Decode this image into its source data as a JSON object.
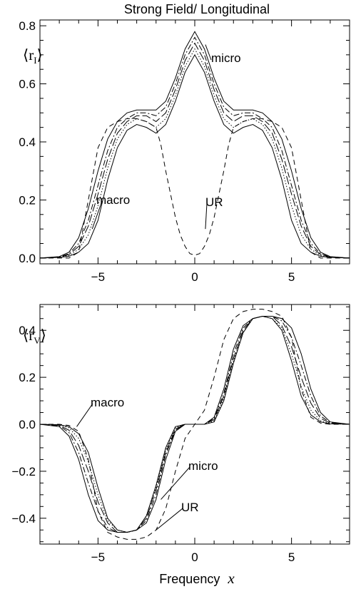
{
  "chart_data": {
    "type": "line",
    "title": "Strong Field/ Longitudinal",
    "xlabel": "Frequency",
    "xlabel_var": "x",
    "panels": [
      {
        "label": "⟨r",
        "label_sub": "I",
        "label_close": "⟩",
        "xlim": [
          -8,
          8
        ],
        "ylim": [
          -0.02,
          0.82
        ],
        "xticks": [
          -5,
          0,
          5
        ],
        "xtick_labels": [
          "−5",
          "0",
          "5"
        ],
        "yticks": [
          0.0,
          0.2,
          0.4,
          0.6,
          0.8
        ],
        "ytick_labels": [
          "0.0",
          "0.2",
          "0.4",
          "0.6",
          "0.8"
        ],
        "series": [
          {
            "style": "solid",
            "x": [
              -8,
              -7,
              -6.5,
              -6,
              -5.5,
              -5,
              -4.5,
              -4,
              -3.5,
              -3,
              -2.5,
              -2,
              -1.5,
              -1,
              -0.5,
              0,
              0.5,
              1,
              1.5,
              2,
              2.5,
              3,
              3.5,
              4,
              4.5,
              5,
              5.5,
              6,
              6.5,
              7,
              8
            ],
            "y": [
              0.0,
              0.005,
              0.02,
              0.07,
              0.17,
              0.3,
              0.41,
              0.47,
              0.5,
              0.51,
              0.51,
              0.51,
              0.54,
              0.62,
              0.72,
              0.78,
              0.72,
              0.62,
              0.54,
              0.51,
              0.51,
              0.51,
              0.5,
              0.47,
              0.41,
              0.3,
              0.17,
              0.07,
              0.02,
              0.005,
              0.0
            ]
          },
          {
            "style": "solid",
            "x": [
              -8,
              -7,
              -6.5,
              -6,
              -5.5,
              -5,
              -4.5,
              -4,
              -3.5,
              -3,
              -2.5,
              -2,
              -1.5,
              -1,
              -0.5,
              0,
              0.5,
              1,
              1.5,
              2,
              2.5,
              3,
              3.5,
              4,
              4.5,
              5,
              5.5,
              6,
              6.5,
              7,
              8
            ],
            "y": [
              0.0,
              0.002,
              0.006,
              0.02,
              0.05,
              0.13,
              0.27,
              0.38,
              0.44,
              0.46,
              0.45,
              0.43,
              0.46,
              0.54,
              0.64,
              0.7,
              0.64,
              0.54,
              0.46,
              0.43,
              0.45,
              0.46,
              0.44,
              0.38,
              0.27,
              0.13,
              0.05,
              0.02,
              0.006,
              0.002,
              0.0
            ]
          },
          {
            "style": "dashdot",
            "x": [
              -8,
              -7,
              -6.5,
              -6,
              -5.5,
              -5,
              -4.5,
              -4,
              -3.5,
              -3,
              -2.5,
              -2,
              -1.5,
              -1,
              -0.5,
              0,
              0.5,
              1,
              1.5,
              2,
              2.5,
              3,
              3.5,
              4,
              4.5,
              5,
              5.5,
              6,
              6.5,
              7,
              8
            ],
            "y": [
              0.0,
              0.004,
              0.015,
              0.05,
              0.13,
              0.25,
              0.37,
              0.45,
              0.48,
              0.5,
              0.5,
              0.49,
              0.52,
              0.6,
              0.7,
              0.76,
              0.7,
              0.6,
              0.52,
              0.49,
              0.5,
              0.5,
              0.48,
              0.45,
              0.37,
              0.25,
              0.13,
              0.05,
              0.015,
              0.004,
              0.0
            ]
          },
          {
            "style": "longdash",
            "x": [
              -8,
              -7,
              -6.5,
              -6,
              -5.5,
              -5,
              -4.5,
              -4,
              -3.5,
              -3,
              -2.5,
              -2,
              -1.5,
              -1,
              -0.5,
              0,
              0.5,
              1,
              1.5,
              2,
              2.5,
              3,
              3.5,
              4,
              4.5,
              5,
              5.5,
              6,
              6.5,
              7,
              8
            ],
            "y": [
              0.0,
              0.003,
              0.012,
              0.04,
              0.11,
              0.22,
              0.34,
              0.43,
              0.47,
              0.49,
              0.49,
              0.47,
              0.5,
              0.58,
              0.68,
              0.74,
              0.68,
              0.58,
              0.5,
              0.47,
              0.49,
              0.49,
              0.47,
              0.43,
              0.34,
              0.22,
              0.11,
              0.04,
              0.012,
              0.003,
              0.0
            ]
          },
          {
            "style": "dotted",
            "x": [
              -8,
              -7,
              -6.5,
              -6,
              -5.5,
              -5,
              -4.5,
              -4,
              -3.5,
              -3,
              -2.5,
              -2,
              -1.5,
              -1,
              -0.5,
              0,
              0.5,
              1,
              1.5,
              2,
              2.5,
              3,
              3.5,
              4,
              4.5,
              5,
              5.5,
              6,
              6.5,
              7,
              8
            ],
            "y": [
              0.0,
              0.003,
              0.009,
              0.03,
              0.08,
              0.18,
              0.31,
              0.41,
              0.46,
              0.48,
              0.47,
              0.45,
              0.48,
              0.56,
              0.66,
              0.72,
              0.66,
              0.56,
              0.48,
              0.45,
              0.47,
              0.48,
              0.46,
              0.41,
              0.31,
              0.18,
              0.08,
              0.03,
              0.009,
              0.003,
              0.0
            ]
          },
          {
            "style": "dashed",
            "x": [
              -8,
              -7,
              -6.5,
              -6,
              -5.5,
              -5,
              -4.5,
              -4,
              -3.5,
              -3,
              -2.5,
              -2,
              -1.75,
              -1.5,
              -1.25,
              -1,
              -0.75,
              -0.5,
              -0.25,
              0,
              0.25,
              0.5,
              0.75,
              1,
              1.25,
              1.5,
              1.75,
              2,
              2.5,
              3,
              3.5,
              4,
              4.5,
              5,
              5.5,
              6,
              6.5,
              7,
              8
            ],
            "y": [
              0.0,
              0.0,
              0.0,
              0.02,
              0.2,
              0.38,
              0.45,
              0.47,
              0.48,
              0.48,
              0.47,
              0.45,
              0.39,
              0.3,
              0.22,
              0.14,
              0.08,
              0.04,
              0.015,
              0.01,
              0.015,
              0.04,
              0.08,
              0.14,
              0.22,
              0.3,
              0.39,
              0.45,
              0.47,
              0.48,
              0.48,
              0.47,
              0.45,
              0.38,
              0.2,
              0.02,
              0.0,
              0.0,
              0.0
            ]
          }
        ],
        "annotations": [
          {
            "text": "micro",
            "x": 2.7,
            "y": 0.655,
            "tip_x": 0.55,
            "tip_y": 0.735
          },
          {
            "text": "macro",
            "x": -4.6,
            "y": 0.165,
            "tip_x": -5.3,
            "tip_y": 0.1
          },
          {
            "text": "UR",
            "x": 1.3,
            "y": 0.165,
            "tip_x": 0.55,
            "tip_y": 0.1
          }
        ]
      },
      {
        "label": "⟨r",
        "label_sub": "V",
        "label_close": "⟩",
        "xlim": [
          -8,
          8
        ],
        "ylim": [
          -0.51,
          0.51
        ],
        "xticks": [
          -5,
          0,
          5
        ],
        "xtick_labels": [
          "−5",
          "0",
          "5"
        ],
        "yticks": [
          -0.4,
          -0.2,
          0.0,
          0.2,
          0.4
        ],
        "ytick_labels": [
          "−0.4",
          "−0.2",
          "0.0",
          "0.2",
          "0.4"
        ],
        "series": [
          {
            "style": "solid",
            "x": [
              -8,
              -7,
              -6.5,
              -6,
              -5.5,
              -5,
              -4.5,
              -4,
              -3.5,
              -3,
              -2.5,
              -2,
              -1.5,
              -1,
              -0.5,
              0,
              0.5,
              1,
              1.5,
              2,
              2.5,
              3,
              3.5,
              4,
              4.5,
              5,
              5.5,
              6,
              6.5,
              7,
              8
            ],
            "y": [
              0.0,
              -0.01,
              -0.05,
              -0.15,
              -0.3,
              -0.41,
              -0.45,
              -0.46,
              -0.46,
              -0.45,
              -0.42,
              -0.32,
              -0.15,
              -0.03,
              0.0,
              0.0,
              0.0,
              0.03,
              0.15,
              0.32,
              0.42,
              0.45,
              0.46,
              0.46,
              0.45,
              0.41,
              0.3,
              0.15,
              0.05,
              0.01,
              0.0
            ]
          },
          {
            "style": "solid",
            "x": [
              -8,
              -7,
              -6.5,
              -6,
              -5.5,
              -5,
              -4.5,
              -4,
              -3.5,
              -3,
              -2.5,
              -2,
              -1.5,
              -1,
              -0.5,
              0,
              0.5,
              1,
              1.5,
              2,
              2.5,
              3,
              3.5,
              4,
              4.5,
              5,
              5.5,
              6,
              6.5,
              7,
              8
            ],
            "y": [
              0.0,
              -0.002,
              -0.01,
              -0.04,
              -0.12,
              -0.27,
              -0.4,
              -0.45,
              -0.46,
              -0.45,
              -0.39,
              -0.26,
              -0.1,
              -0.01,
              0.0,
              0.0,
              0.0,
              0.01,
              0.1,
              0.26,
              0.39,
              0.45,
              0.46,
              0.45,
              0.4,
              0.27,
              0.12,
              0.04,
              0.01,
              0.002,
              0.0
            ]
          },
          {
            "style": "dashdot",
            "x": [
              -8,
              -7,
              -6.5,
              -6,
              -5.5,
              -5,
              -4.5,
              -4,
              -3.5,
              -3,
              -2.5,
              -2,
              -1.5,
              -1,
              -0.5,
              0,
              0.5,
              1,
              1.5,
              2,
              2.5,
              3,
              3.5,
              4,
              4.5,
              5,
              5.5,
              6,
              6.5,
              7,
              8
            ],
            "y": [
              0.0,
              -0.007,
              -0.035,
              -0.12,
              -0.25,
              -0.37,
              -0.44,
              -0.46,
              -0.46,
              -0.45,
              -0.41,
              -0.3,
              -0.13,
              -0.025,
              0.0,
              0.0,
              0.0,
              0.025,
              0.13,
              0.3,
              0.41,
              0.45,
              0.46,
              0.46,
              0.44,
              0.37,
              0.25,
              0.12,
              0.035,
              0.007,
              0.0
            ]
          },
          {
            "style": "longdash",
            "x": [
              -8,
              -7,
              -6.5,
              -6,
              -5.5,
              -5,
              -4.5,
              -4,
              -3.5,
              -3,
              -2.5,
              -2,
              -1.5,
              -1,
              -0.5,
              0,
              0.5,
              1,
              1.5,
              2,
              2.5,
              3,
              3.5,
              4,
              4.5,
              5,
              5.5,
              6,
              6.5,
              7,
              8
            ],
            "y": [
              0.0,
              -0.005,
              -0.025,
              -0.09,
              -0.2,
              -0.33,
              -0.42,
              -0.46,
              -0.46,
              -0.45,
              -0.4,
              -0.28,
              -0.12,
              -0.02,
              0.0,
              0.0,
              0.0,
              0.02,
              0.12,
              0.28,
              0.4,
              0.45,
              0.46,
              0.46,
              0.42,
              0.33,
              0.2,
              0.09,
              0.025,
              0.005,
              0.0
            ]
          },
          {
            "style": "dotted",
            "x": [
              -8,
              -7,
              -6.5,
              -6,
              -5.5,
              -5,
              -4.5,
              -4,
              -3.5,
              -3,
              -2.5,
              -2,
              -1.5,
              -1,
              -0.5,
              0,
              0.5,
              1,
              1.5,
              2,
              2.5,
              3,
              3.5,
              4,
              4.5,
              5,
              5.5,
              6,
              6.5,
              7,
              8
            ],
            "y": [
              0.0,
              -0.003,
              -0.015,
              -0.06,
              -0.16,
              -0.3,
              -0.41,
              -0.45,
              -0.46,
              -0.45,
              -0.39,
              -0.27,
              -0.11,
              -0.015,
              0.0,
              0.0,
              0.0,
              0.015,
              0.11,
              0.27,
              0.39,
              0.45,
              0.46,
              0.45,
              0.41,
              0.3,
              0.16,
              0.06,
              0.015,
              0.003,
              0.0
            ]
          },
          {
            "style": "dashed",
            "x": [
              -8,
              -7,
              -6.5,
              -6,
              -5.5,
              -5,
              -4.5,
              -4,
              -3.5,
              -3,
              -2.5,
              -2,
              -1.5,
              -1,
              -0.5,
              0,
              0.5,
              1,
              1.5,
              2,
              2.5,
              3,
              3.5,
              4,
              4.5,
              5,
              5.5,
              6,
              6.5,
              7,
              8
            ],
            "y": [
              0.0,
              0.0,
              -0.005,
              -0.03,
              -0.15,
              -0.37,
              -0.46,
              -0.48,
              -0.49,
              -0.49,
              -0.48,
              -0.45,
              -0.36,
              -0.2,
              -0.06,
              0.0,
              0.06,
              0.2,
              0.36,
              0.45,
              0.48,
              0.49,
              0.49,
              0.48,
              0.46,
              0.37,
              0.15,
              0.03,
              0.005,
              0.0,
              0.0
            ]
          }
        ],
        "annotations": [
          {
            "text": "macro",
            "x": -5.1,
            "y": 0.16,
            "tip_x": -6.1,
            "tip_y": -0.01
          },
          {
            "text": "micro",
            "x": 0.0,
            "y": -0.22,
            "tip_x": -1.75,
            "tip_y": -0.32
          },
          {
            "text": "UR",
            "x": -0.65,
            "y": -0.39,
            "tip_x": -2.0,
            "tip_y": -0.45
          }
        ]
      }
    ]
  }
}
